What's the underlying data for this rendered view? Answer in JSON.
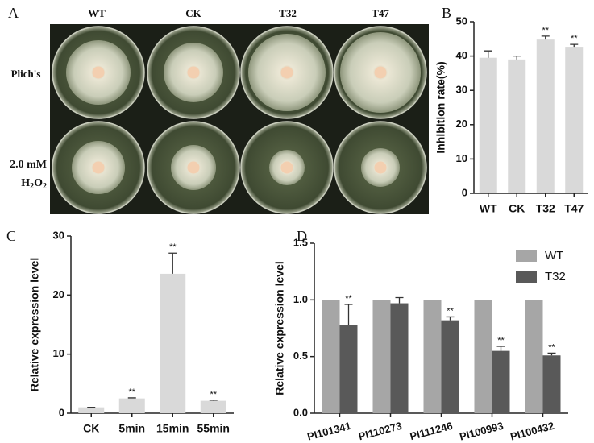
{
  "panel_a": {
    "label": "A",
    "columns": [
      "WT",
      "CK",
      "T32",
      "T47"
    ],
    "rows": [
      "Plich's",
      [
        "2.0 mM",
        "H",
        "2",
        "O",
        "2"
      ]
    ]
  },
  "chart_data": [
    {
      "type": "bar",
      "panel": "B",
      "ylabel": "Inhibition rate(%)",
      "categories": [
        "WT",
        "CK",
        "T32",
        "T47"
      ],
      "series": [
        {
          "color": "#d9d9d9",
          "values": [
            39.5,
            39,
            44.8,
            42.7
          ],
          "errors": [
            2,
            1,
            1,
            0.7
          ],
          "significance": [
            null,
            null,
            "**",
            "**"
          ]
        }
      ],
      "ylim": [
        0,
        50
      ],
      "yticks": [
        0,
        10,
        20,
        30,
        40,
        50
      ]
    },
    {
      "type": "bar",
      "panel": "C",
      "ylabel": "Relative expression level",
      "categories": [
        "CK",
        "5min",
        "15min",
        "55min"
      ],
      "series": [
        {
          "color": "#d9d9d9",
          "values": [
            1,
            2.5,
            23.6,
            2.1
          ],
          "errors": [
            0,
            0.1,
            3.5,
            0.1
          ],
          "significance": [
            null,
            "**",
            "**",
            "**"
          ]
        }
      ],
      "ylim": [
        0,
        30
      ],
      "yticks": [
        0,
        10,
        20,
        30
      ]
    },
    {
      "type": "bar",
      "panel": "D",
      "ylabel": "Relative expression level",
      "categories": [
        "PI101341",
        "PI110273",
        "PI111246",
        "PI100993",
        "PI100432"
      ],
      "series": [
        {
          "name": "WT",
          "color": "#a6a6a6",
          "values": [
            1,
            1,
            1,
            1,
            1
          ]
        },
        {
          "name": "T32",
          "color": "#595959",
          "values": [
            0.78,
            0.97,
            0.82,
            0.55,
            0.51
          ],
          "errors": [
            0.18,
            0.05,
            0.03,
            0.04,
            0.02
          ],
          "significance": [
            "**",
            null,
            "**",
            "**",
            "**"
          ]
        }
      ],
      "ylim": [
        0,
        1.5
      ],
      "yticks": [
        {
          "value": 0,
          "label": "0.0"
        },
        0.5,
        {
          "value": 1,
          "label": "1.0"
        },
        1.5
      ],
      "legend": "upper right"
    }
  ]
}
